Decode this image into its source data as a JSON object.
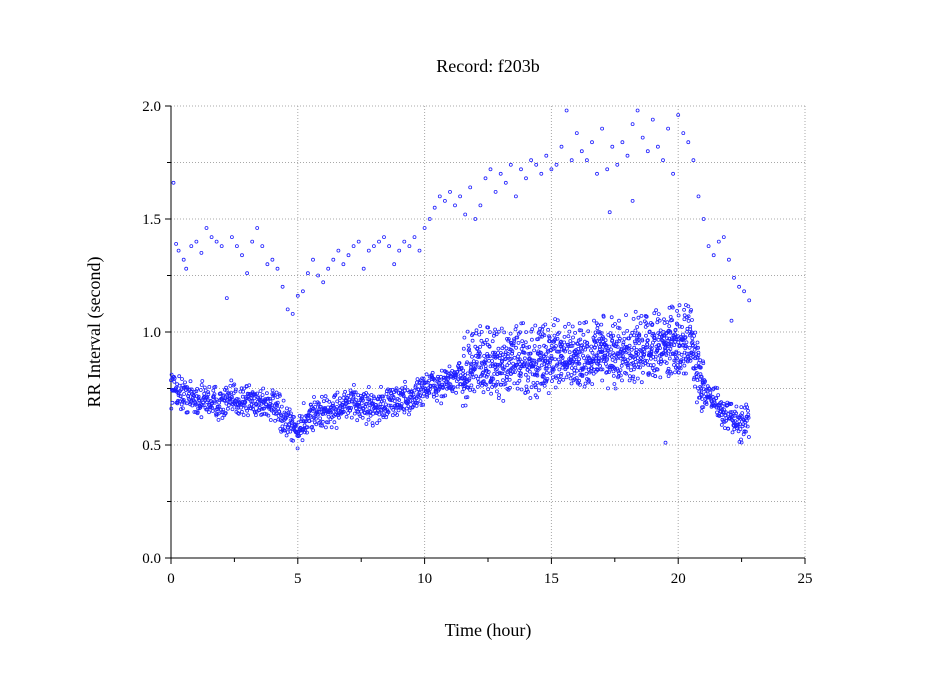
{
  "chart_data": {
    "type": "scatter",
    "title": "Record:  f203b",
    "xlabel": "Time (hour)",
    "ylabel": "RR Interval (second)",
    "xlim": [
      0,
      25
    ],
    "ylim": [
      0.0,
      2.0
    ],
    "xticks": [
      0,
      5,
      10,
      15,
      20,
      25
    ],
    "yticks": [
      "0.0",
      "0.5",
      "1.0",
      "1.5",
      "2.0"
    ],
    "grid": true,
    "marker_color": "#1f1fff",
    "series": [
      {
        "band_profile": [
          [
            0.0,
            0.76
          ],
          [
            0.5,
            0.72
          ],
          [
            1.0,
            0.7
          ],
          [
            1.5,
            0.7
          ],
          [
            2.0,
            0.68
          ],
          [
            2.5,
            0.7
          ],
          [
            3.0,
            0.7
          ],
          [
            3.5,
            0.69
          ],
          [
            4.0,
            0.68
          ],
          [
            4.5,
            0.6
          ],
          [
            5.0,
            0.56
          ],
          [
            5.5,
            0.64
          ],
          [
            6.0,
            0.64
          ],
          [
            6.5,
            0.66
          ],
          [
            7.0,
            0.68
          ],
          [
            7.5,
            0.68
          ],
          [
            8.0,
            0.67
          ],
          [
            8.5,
            0.68
          ],
          [
            9.0,
            0.7
          ],
          [
            9.5,
            0.7
          ],
          [
            10.0,
            0.76
          ],
          [
            10.5,
            0.76
          ],
          [
            11.0,
            0.78
          ],
          [
            11.5,
            0.8
          ],
          [
            12.0,
            0.86
          ],
          [
            12.5,
            0.84
          ],
          [
            13.0,
            0.84
          ],
          [
            13.5,
            0.86
          ],
          [
            14.0,
            0.86
          ],
          [
            14.5,
            0.86
          ],
          [
            15.0,
            0.88
          ],
          [
            15.5,
            0.88
          ],
          [
            16.0,
            0.88
          ],
          [
            16.5,
            0.88
          ],
          [
            17.0,
            0.9
          ],
          [
            17.5,
            0.9
          ],
          [
            18.0,
            0.9
          ],
          [
            18.5,
            0.92
          ],
          [
            19.0,
            0.92
          ],
          [
            19.5,
            0.93
          ],
          [
            20.0,
            0.94
          ],
          [
            20.5,
            0.94
          ],
          [
            21.0,
            0.74
          ],
          [
            21.5,
            0.68
          ],
          [
            22.0,
            0.62
          ],
          [
            22.5,
            0.6
          ],
          [
            22.8,
            0.6
          ]
        ],
        "scatter_points": [
          [
            0.1,
            1.66
          ],
          [
            0.2,
            1.39
          ],
          [
            0.3,
            1.36
          ],
          [
            0.5,
            1.32
          ],
          [
            0.6,
            1.28
          ],
          [
            0.8,
            1.38
          ],
          [
            1.0,
            1.4
          ],
          [
            1.2,
            1.35
          ],
          [
            1.4,
            1.46
          ],
          [
            1.6,
            1.42
          ],
          [
            1.8,
            1.4
          ],
          [
            2.0,
            1.38
          ],
          [
            2.2,
            1.15
          ],
          [
            2.4,
            1.42
          ],
          [
            2.6,
            1.38
          ],
          [
            2.8,
            1.34
          ],
          [
            3.0,
            1.26
          ],
          [
            3.2,
            1.4
          ],
          [
            3.4,
            1.46
          ],
          [
            3.6,
            1.38
          ],
          [
            3.8,
            1.3
          ],
          [
            4.0,
            1.32
          ],
          [
            4.2,
            1.28
          ],
          [
            4.4,
            1.2
          ],
          [
            4.6,
            1.1
          ],
          [
            4.8,
            1.08
          ],
          [
            5.0,
            1.16
          ],
          [
            5.2,
            1.18
          ],
          [
            5.4,
            1.26
          ],
          [
            5.6,
            1.32
          ],
          [
            5.8,
            1.25
          ],
          [
            6.0,
            1.22
          ],
          [
            6.2,
            1.28
          ],
          [
            6.4,
            1.32
          ],
          [
            6.6,
            1.36
          ],
          [
            6.8,
            1.3
          ],
          [
            7.0,
            1.34
          ],
          [
            7.2,
            1.38
          ],
          [
            7.4,
            1.4
          ],
          [
            7.6,
            1.28
          ],
          [
            7.8,
            1.36
          ],
          [
            8.0,
            1.38
          ],
          [
            8.2,
            1.4
          ],
          [
            8.4,
            1.42
          ],
          [
            8.6,
            1.38
          ],
          [
            8.8,
            1.3
          ],
          [
            9.0,
            1.36
          ],
          [
            9.2,
            1.4
          ],
          [
            9.4,
            1.38
          ],
          [
            9.6,
            1.42
          ],
          [
            9.8,
            1.36
          ],
          [
            10.0,
            1.46
          ],
          [
            10.2,
            1.5
          ],
          [
            10.4,
            1.55
          ],
          [
            10.6,
            1.6
          ],
          [
            10.8,
            1.58
          ],
          [
            11.0,
            1.62
          ],
          [
            11.2,
            1.56
          ],
          [
            11.4,
            1.6
          ],
          [
            11.6,
            1.52
          ],
          [
            11.8,
            1.64
          ],
          [
            12.0,
            1.5
          ],
          [
            12.2,
            1.56
          ],
          [
            12.4,
            1.68
          ],
          [
            12.6,
            1.72
          ],
          [
            12.8,
            1.62
          ],
          [
            13.0,
            1.7
          ],
          [
            13.2,
            1.66
          ],
          [
            13.4,
            1.74
          ],
          [
            13.6,
            1.6
          ],
          [
            13.8,
            1.72
          ],
          [
            14.0,
            1.68
          ],
          [
            14.2,
            1.76
          ],
          [
            14.4,
            1.74
          ],
          [
            14.6,
            1.7
          ],
          [
            14.8,
            1.78
          ],
          [
            15.0,
            1.72
          ],
          [
            15.2,
            1.74
          ],
          [
            15.4,
            1.82
          ],
          [
            15.6,
            1.98
          ],
          [
            15.8,
            1.76
          ],
          [
            16.0,
            1.88
          ],
          [
            16.2,
            1.8
          ],
          [
            16.4,
            1.76
          ],
          [
            16.6,
            1.84
          ],
          [
            16.8,
            1.7
          ],
          [
            17.0,
            1.9
          ],
          [
            17.2,
            1.72
          ],
          [
            17.4,
            1.82
          ],
          [
            17.6,
            1.74
          ],
          [
            17.8,
            1.84
          ],
          [
            18.0,
            1.78
          ],
          [
            18.2,
            1.92
          ],
          [
            18.4,
            1.98
          ],
          [
            18.6,
            1.86
          ],
          [
            18.8,
            1.8
          ],
          [
            19.0,
            1.94
          ],
          [
            19.2,
            1.82
          ],
          [
            19.4,
            1.76
          ],
          [
            19.6,
            1.9
          ],
          [
            19.8,
            1.7
          ],
          [
            20.0,
            1.96
          ],
          [
            20.2,
            1.88
          ],
          [
            20.4,
            1.84
          ],
          [
            20.6,
            1.76
          ],
          [
            20.8,
            1.6
          ],
          [
            21.0,
            1.5
          ],
          [
            21.2,
            1.38
          ],
          [
            21.4,
            1.34
          ],
          [
            21.6,
            1.4
          ],
          [
            21.8,
            1.42
          ],
          [
            22.0,
            1.32
          ],
          [
            22.2,
            1.24
          ],
          [
            22.4,
            1.2
          ],
          [
            22.6,
            1.18
          ],
          [
            22.8,
            1.14
          ],
          [
            17.3,
            1.53
          ],
          [
            18.2,
            1.58
          ],
          [
            19.5,
            0.51
          ],
          [
            22.1,
            1.05
          ]
        ]
      }
    ]
  }
}
